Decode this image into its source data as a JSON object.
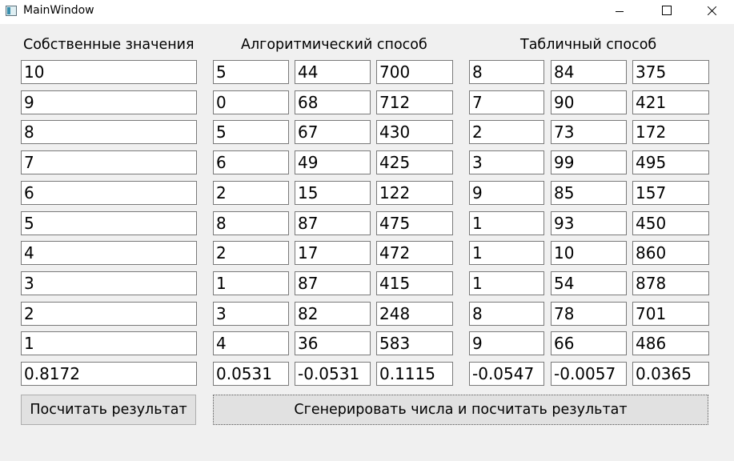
{
  "window": {
    "title": "MainWindow"
  },
  "headers": {
    "eigenvalues": "Собственные значения",
    "algorithmic": "Алгоритмический способ",
    "tabular": "Табличный способ"
  },
  "eigenvalues": [
    "10",
    "9",
    "8",
    "7",
    "6",
    "5",
    "4",
    "3",
    "2",
    "1"
  ],
  "eigen_result": "0.8172",
  "algorithmic": {
    "rows": [
      [
        "5",
        "44",
        "700"
      ],
      [
        "0",
        "68",
        "712"
      ],
      [
        "5",
        "67",
        "430"
      ],
      [
        "6",
        "49",
        "425"
      ],
      [
        "2",
        "15",
        "122"
      ],
      [
        "8",
        "87",
        "475"
      ],
      [
        "2",
        "17",
        "472"
      ],
      [
        "1",
        "87",
        "415"
      ],
      [
        "3",
        "82",
        "248"
      ],
      [
        "4",
        "36",
        "583"
      ]
    ],
    "results": [
      "0.0531",
      "-0.0531",
      "0.1115"
    ]
  },
  "tabular": {
    "rows": [
      [
        "8",
        "84",
        "375"
      ],
      [
        "7",
        "90",
        "421"
      ],
      [
        "2",
        "73",
        "172"
      ],
      [
        "3",
        "99",
        "495"
      ],
      [
        "9",
        "85",
        "157"
      ],
      [
        "1",
        "93",
        "450"
      ],
      [
        "1",
        "10",
        "860"
      ],
      [
        "1",
        "54",
        "878"
      ],
      [
        "8",
        "78",
        "701"
      ],
      [
        "9",
        "66",
        "486"
      ]
    ],
    "results": [
      "-0.0547",
      "-0.0057",
      "0.0365"
    ]
  },
  "buttons": {
    "calculate": "Посчитать результат",
    "generate": "Сгенерировать числа и посчитать результат"
  }
}
